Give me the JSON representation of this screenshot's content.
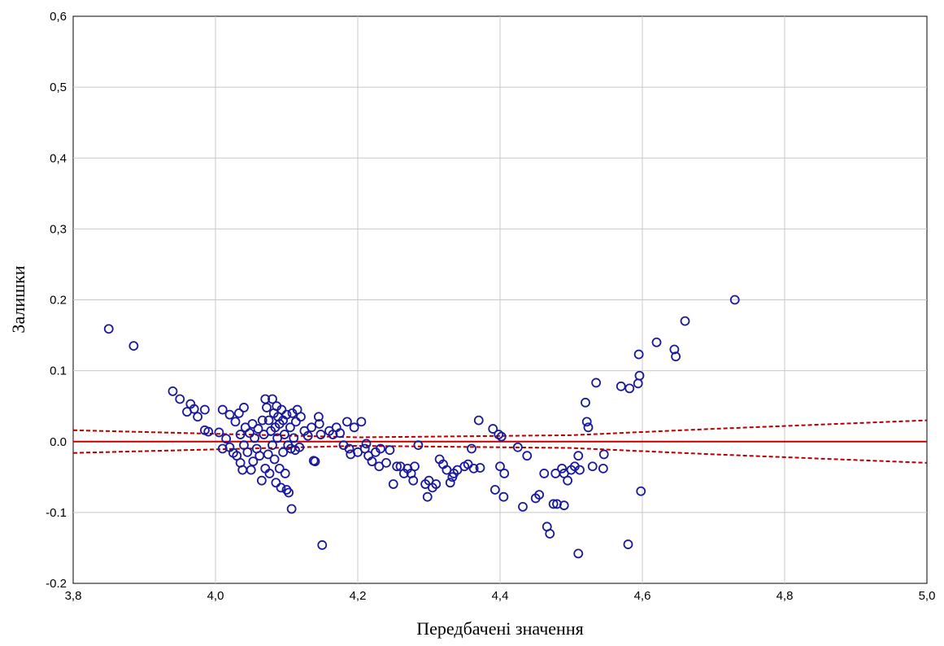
{
  "chart_data": {
    "type": "scatter",
    "title": "",
    "xlabel": "Передбачені значення",
    "ylabel": "Залишки",
    "xlim": [
      3.8,
      5.0
    ],
    "ylim": [
      -0.2,
      0.6
    ],
    "xticks": [
      3.8,
      4.0,
      4.2,
      4.4,
      4.6,
      4.8,
      5.0
    ],
    "xtick_labels": [
      "3,8",
      "4,0",
      "4,2",
      "4,4",
      "4,6",
      "4,8",
      "5,0"
    ],
    "yticks": [
      -0.2,
      -0.1,
      0.0,
      0.1,
      0.2,
      0.3,
      0.4,
      0.5,
      0.6
    ],
    "ytick_labels": [
      "-0.2",
      "-0.1",
      "0.0",
      "0.1",
      "0.2",
      "0,3",
      "0,4",
      "0,5",
      "0,6"
    ],
    "grid": true,
    "colors": {
      "points": "#1a1a9c",
      "fit_line": "#c00000",
      "confidence_band": "#b00000"
    },
    "fit_line": {
      "x": [
        3.8,
        5.0
      ],
      "y": [
        0.0,
        0.0
      ]
    },
    "confidence_band": {
      "upper": {
        "x": [
          3.8,
          4.2,
          4.5,
          4.7,
          5.0
        ],
        "y": [
          0.016,
          0.006,
          0.009,
          0.018,
          0.03
        ]
      },
      "lower": {
        "x": [
          3.8,
          4.2,
          4.5,
          4.7,
          5.0
        ],
        "y": [
          -0.016,
          -0.006,
          -0.009,
          -0.018,
          -0.03
        ]
      }
    },
    "points": [
      [
        3.85,
        0.159
      ],
      [
        3.885,
        0.135
      ],
      [
        3.94,
        0.071
      ],
      [
        3.95,
        0.06
      ],
      [
        3.96,
        0.042
      ],
      [
        3.965,
        0.053
      ],
      [
        3.97,
        0.046
      ],
      [
        3.975,
        0.035
      ],
      [
        3.985,
        0.045
      ],
      [
        3.985,
        0.016
      ],
      [
        3.99,
        0.014
      ],
      [
        4.005,
        0.013
      ],
      [
        4.01,
        -0.01
      ],
      [
        4.01,
        0.045
      ],
      [
        4.015,
        0.004
      ],
      [
        4.02,
        0.038
      ],
      [
        4.02,
        -0.008
      ],
      [
        4.025,
        -0.016
      ],
      [
        4.028,
        0.028
      ],
      [
        4.03,
        -0.02
      ],
      [
        4.033,
        0.04
      ],
      [
        4.035,
        -0.03
      ],
      [
        4.035,
        0.01
      ],
      [
        4.038,
        -0.04
      ],
      [
        4.04,
        0.048
      ],
      [
        4.04,
        -0.005
      ],
      [
        4.042,
        0.02
      ],
      [
        4.045,
        -0.015
      ],
      [
        4.048,
        0.012
      ],
      [
        4.05,
        -0.04
      ],
      [
        4.052,
        0.025
      ],
      [
        4.053,
        -0.028
      ],
      [
        4.055,
        0.005
      ],
      [
        4.058,
        -0.01
      ],
      [
        4.06,
        0.018
      ],
      [
        4.062,
        -0.02
      ],
      [
        4.065,
        -0.055
      ],
      [
        4.066,
        0.03
      ],
      [
        4.068,
        0.01
      ],
      [
        4.07,
        -0.038
      ],
      [
        4.07,
        0.06
      ],
      [
        4.072,
        0.048
      ],
      [
        4.074,
        -0.018
      ],
      [
        4.075,
        0.03
      ],
      [
        4.076,
        -0.045
      ],
      [
        4.078,
        0.015
      ],
      [
        4.08,
        0.06
      ],
      [
        4.08,
        -0.005
      ],
      [
        4.082,
        0.04
      ],
      [
        4.083,
        -0.025
      ],
      [
        4.084,
        0.02
      ],
      [
        4.085,
        -0.058
      ],
      [
        4.086,
        0.05
      ],
      [
        4.087,
        0.005
      ],
      [
        4.088,
        0.035
      ],
      [
        4.09,
        -0.038
      ],
      [
        4.09,
        0.025
      ],
      [
        4.092,
        -0.065
      ],
      [
        4.093,
        0.045
      ],
      [
        4.095,
        -0.015
      ],
      [
        4.095,
        0.03
      ],
      [
        4.097,
        0.01
      ],
      [
        4.098,
        -0.045
      ],
      [
        4.1,
        -0.068
      ],
      [
        4.1,
        0.038
      ],
      [
        4.102,
        -0.005
      ],
      [
        4.103,
        -0.072
      ],
      [
        4.105,
        0.02
      ],
      [
        4.106,
        -0.01
      ],
      [
        4.107,
        -0.095
      ],
      [
        4.108,
        0.04
      ],
      [
        4.11,
        0.005
      ],
      [
        4.112,
        -0.012
      ],
      [
        4.113,
        0.028
      ],
      [
        4.115,
        0.045
      ],
      [
        4.118,
        -0.008
      ],
      [
        4.12,
        0.035
      ],
      [
        4.125,
        0.015
      ],
      [
        4.13,
        0.008
      ],
      [
        4.135,
        0.02
      ],
      [
        4.138,
        -0.027
      ],
      [
        4.14,
        -0.028
      ],
      [
        4.145,
        0.035
      ],
      [
        4.146,
        0.025
      ],
      [
        4.148,
        0.01
      ],
      [
        4.15,
        -0.146
      ],
      [
        4.16,
        0.015
      ],
      [
        4.165,
        0.01
      ],
      [
        4.17,
        0.02
      ],
      [
        4.175,
        0.012
      ],
      [
        4.18,
        -0.005
      ],
      [
        4.185,
        0.028
      ],
      [
        4.188,
        -0.01
      ],
      [
        4.19,
        -0.018
      ],
      [
        4.195,
        0.02
      ],
      [
        4.2,
        -0.015
      ],
      [
        4.205,
        0.028
      ],
      [
        4.21,
        -0.01
      ],
      [
        4.212,
        -0.003
      ],
      [
        4.215,
        -0.02
      ],
      [
        4.22,
        -0.028
      ],
      [
        4.225,
        -0.015
      ],
      [
        4.23,
        -0.035
      ],
      [
        4.232,
        -0.01
      ],
      [
        4.24,
        -0.03
      ],
      [
        4.245,
        -0.012
      ],
      [
        4.25,
        -0.06
      ],
      [
        4.255,
        -0.035
      ],
      [
        4.26,
        -0.035
      ],
      [
        4.265,
        -0.045
      ],
      [
        4.27,
        -0.038
      ],
      [
        4.275,
        -0.045
      ],
      [
        4.278,
        -0.055
      ],
      [
        4.28,
        -0.035
      ],
      [
        4.285,
        -0.005
      ],
      [
        4.295,
        -0.06
      ],
      [
        4.298,
        -0.078
      ],
      [
        4.3,
        -0.055
      ],
      [
        4.305,
        -0.065
      ],
      [
        4.31,
        -0.06
      ],
      [
        4.315,
        -0.025
      ],
      [
        4.32,
        -0.032
      ],
      [
        4.325,
        -0.04
      ],
      [
        4.33,
        -0.058
      ],
      [
        4.333,
        -0.05
      ],
      [
        4.335,
        -0.045
      ],
      [
        4.34,
        -0.04
      ],
      [
        4.35,
        -0.035
      ],
      [
        4.355,
        -0.032
      ],
      [
        4.36,
        -0.01
      ],
      [
        4.363,
        -0.038
      ],
      [
        4.37,
        0.03
      ],
      [
        4.372,
        -0.037
      ],
      [
        4.39,
        0.018
      ],
      [
        4.393,
        -0.068
      ],
      [
        4.398,
        0.01
      ],
      [
        4.4,
        -0.035
      ],
      [
        4.402,
        0.007
      ],
      [
        4.405,
        -0.078
      ],
      [
        4.406,
        -0.045
      ],
      [
        4.425,
        -0.008
      ],
      [
        4.432,
        -0.092
      ],
      [
        4.438,
        -0.02
      ],
      [
        4.45,
        -0.08
      ],
      [
        4.455,
        -0.075
      ],
      [
        4.462,
        -0.045
      ],
      [
        4.466,
        -0.12
      ],
      [
        4.47,
        -0.13
      ],
      [
        4.475,
        -0.088
      ],
      [
        4.478,
        -0.045
      ],
      [
        4.48,
        -0.088
      ],
      [
        4.487,
        -0.038
      ],
      [
        4.49,
        -0.045
      ],
      [
        4.49,
        -0.09
      ],
      [
        4.495,
        -0.055
      ],
      [
        4.5,
        -0.04
      ],
      [
        4.505,
        -0.035
      ],
      [
        4.51,
        -0.158
      ],
      [
        4.51,
        -0.02
      ],
      [
        4.512,
        -0.04
      ],
      [
        4.52,
        0.055
      ],
      [
        4.522,
        0.028
      ],
      [
        4.524,
        0.02
      ],
      [
        4.53,
        -0.035
      ],
      [
        4.535,
        0.083
      ],
      [
        4.545,
        -0.038
      ],
      [
        4.546,
        -0.018
      ],
      [
        4.57,
        0.078
      ],
      [
        4.58,
        -0.145
      ],
      [
        4.582,
        0.075
      ],
      [
        4.594,
        0.082
      ],
      [
        4.595,
        0.123
      ],
      [
        4.596,
        0.093
      ],
      [
        4.598,
        -0.07
      ],
      [
        4.62,
        0.14
      ],
      [
        4.645,
        0.13
      ],
      [
        4.647,
        0.12
      ],
      [
        4.66,
        0.17
      ],
      [
        4.73,
        0.2
      ]
    ]
  }
}
